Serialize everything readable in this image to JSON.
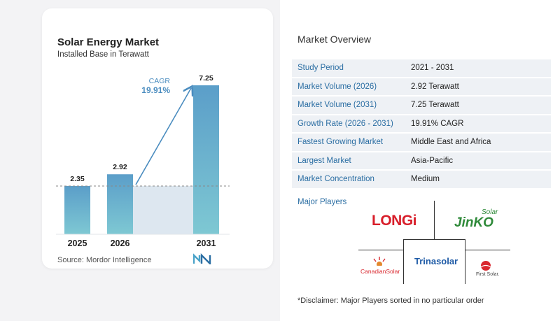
{
  "chart": {
    "title": "Solar Energy Market",
    "subtitle": "Installed Base in Terawatt",
    "source": "Source:  Mordor Intelligence",
    "cagr_label": "CAGR",
    "cagr_value": "19.91%"
  },
  "chart_data": {
    "type": "bar",
    "categories": [
      "2025",
      "2026",
      "2031"
    ],
    "values": [
      2.35,
      2.92,
      7.25
    ],
    "value_labels": [
      "2.35",
      "2.92",
      "7.25"
    ],
    "title": "Solar Energy Market",
    "subtitle": "Installed Base in Terawatt",
    "xlabel": "",
    "ylabel": "",
    "annotation": "CAGR 19.91%",
    "colors": {
      "bar_top": "#5b9ec9",
      "bar_bottom": "#7ec8d3",
      "shade": "#dde7f0",
      "arrow": "#4a8cbf"
    }
  },
  "overview": {
    "title": "Market Overview",
    "rows": [
      {
        "key": "Study Period",
        "value": "2021 - 2031"
      },
      {
        "key": "Market Volume (2026)",
        "value": "2.92 Terawatt"
      },
      {
        "key": "Market Volume (2031)",
        "value": "7.25 Terawatt"
      },
      {
        "key": "Growth Rate (2026 - 2031)",
        "value": "19.91% CAGR"
      },
      {
        "key": "Fastest Growing Market",
        "value": "Middle East and Africa"
      },
      {
        "key": "Largest Market",
        "value": "Asia-Pacific"
      },
      {
        "key": "Market Concentration",
        "value": "Medium"
      }
    ],
    "players_title": "Major Players",
    "players": {
      "longi": "LONGi",
      "jinko": "JinKO",
      "jinko_solar": "Solar",
      "canadian": "CanadianSolar",
      "trina": "Trinasolar",
      "firstsolar": "First Solar."
    },
    "disclaimer": "*Disclaimer: Major Players sorted in no particular order"
  }
}
